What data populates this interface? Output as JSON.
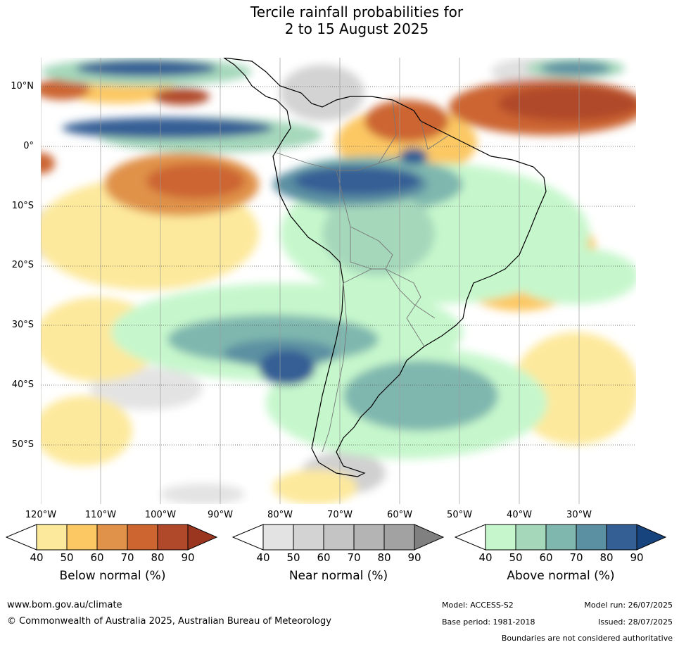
{
  "title": {
    "line1": "Tercile rainfall probabilities for",
    "line2": "2 to 15 August 2025"
  },
  "map": {
    "lat_labels": [
      "10°N",
      "0°",
      "10°S",
      "20°S",
      "30°S",
      "40°S",
      "50°S"
    ],
    "lon_labels": [
      "120°W",
      "110°W",
      "100°W",
      "90°W",
      "80°W",
      "70°W",
      "60°W",
      "50°W",
      "40°W",
      "30°W"
    ]
  },
  "legends": [
    {
      "title": "Below normal (%)",
      "ticks": [
        "40",
        "50",
        "60",
        "70",
        "80",
        "90"
      ],
      "colors": [
        "#ffffff",
        "#fde99c",
        "#fcc863",
        "#e0924a",
        "#cc6530",
        "#b0482a",
        "#9a3520"
      ]
    },
    {
      "title": "Near normal (%)",
      "ticks": [
        "40",
        "50",
        "60",
        "70",
        "80",
        "90"
      ],
      "colors": [
        "#ffffff",
        "#e3e3e3",
        "#d3d3d3",
        "#c4c4c4",
        "#b4b4b4",
        "#a2a2a2",
        "#808080"
      ]
    },
    {
      "title": "Above normal (%)",
      "ticks": [
        "40",
        "50",
        "60",
        "70",
        "80",
        "90"
      ],
      "colors": [
        "#ffffff",
        "#c6f7cc",
        "#a5d8bb",
        "#7fb7af",
        "#5b90a2",
        "#345f95",
        "#18447e"
      ]
    }
  ],
  "footer": {
    "website": "www.bom.gov.au/climate",
    "copyright": "© Commonwealth of Australia 2025, Australian Bureau of Meteorology",
    "model": "Model: ACCESS-S2",
    "base_period": "Base period: 1981-2018",
    "model_run": "Model run: 26/07/2025",
    "issued": "Issued: 28/07/2025",
    "boundaries": "Boundaries are not considered authoritative"
  }
}
